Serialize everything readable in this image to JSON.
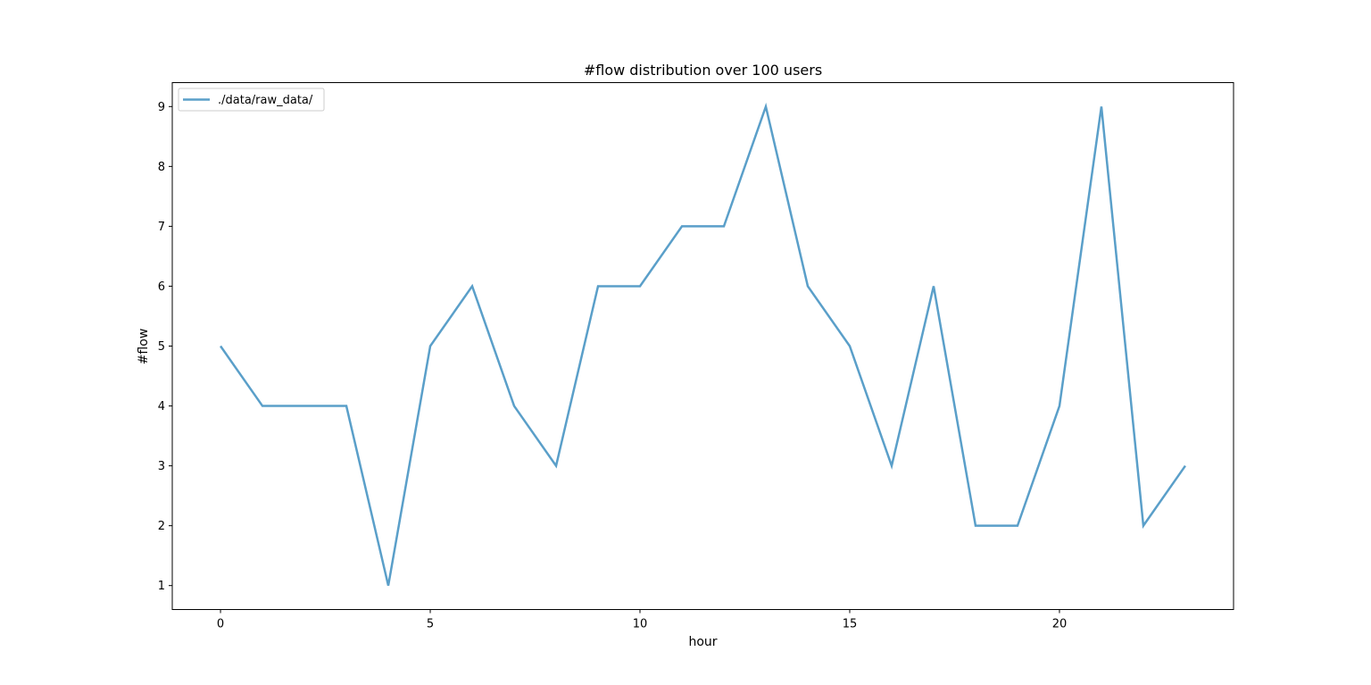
{
  "chart_data": {
    "type": "line",
    "title": "#flow distribution over 100 users",
    "xlabel": "hour",
    "ylabel": "#flow",
    "x": [
      0,
      1,
      2,
      3,
      4,
      5,
      6,
      7,
      8,
      9,
      10,
      11,
      12,
      13,
      14,
      15,
      16,
      17,
      18,
      19,
      20,
      21,
      22,
      23
    ],
    "series": [
      {
        "name": "./data/raw_data/",
        "values": [
          5,
          4,
          4,
          4,
          1,
          5,
          6,
          4,
          3,
          6,
          6,
          7,
          7,
          9,
          6,
          5,
          3,
          6,
          2,
          2,
          4,
          9,
          2,
          3
        ],
        "color": "#5a9fc9"
      }
    ],
    "xlim": [
      -1.15,
      24.15
    ],
    "ylim": [
      0.6,
      9.4
    ],
    "xticks": [
      0,
      5,
      10,
      15,
      20
    ],
    "yticks": [
      1,
      2,
      3,
      4,
      5,
      6,
      7,
      8,
      9
    ],
    "grid": false,
    "legend": "top-left"
  }
}
